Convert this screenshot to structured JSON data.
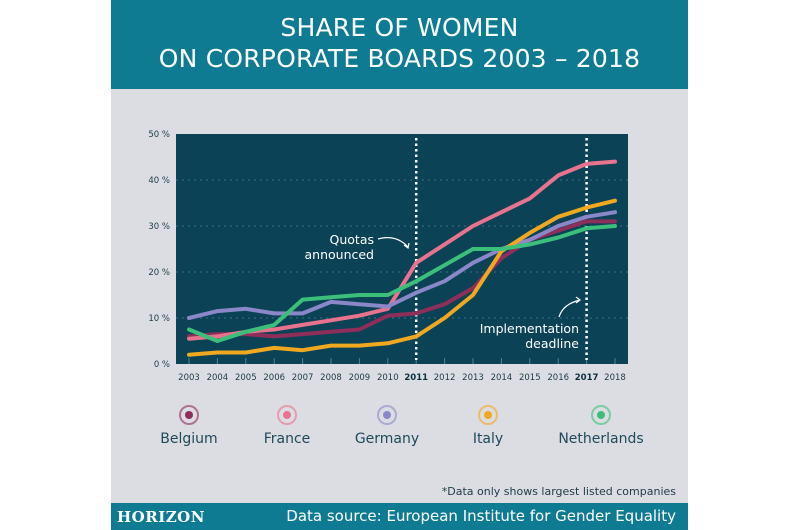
{
  "header": {
    "title_line1": "SHARE OF WOMEN",
    "title_line2": "ON CORPORATE BOARDS 2003 – 2018"
  },
  "colors": {
    "header": "#0f7b92",
    "plot_bg": "#0b4256",
    "background": "#dcdde2"
  },
  "chart_data": {
    "type": "line",
    "title": "SHARE OF WOMEN ON CORPORATE BOARDS 2003 – 2018",
    "x": [
      2003,
      2004,
      2005,
      2006,
      2007,
      2008,
      2009,
      2010,
      2011,
      2012,
      2013,
      2014,
      2015,
      2016,
      2017,
      2018
    ],
    "x_tick_labels": [
      "2003",
      "2004",
      "2005",
      "2006",
      "2007",
      "2008",
      "2009",
      "2010",
      "2011",
      "2012",
      "2013",
      "2014",
      "2015",
      "2016",
      "2017",
      "2018"
    ],
    "bold_ticks": [
      "2011",
      "2017"
    ],
    "y_tick_labels": [
      "0 %",
      "10 %",
      "20 %",
      "30 %",
      "40 %",
      "50 %"
    ],
    "ylim": [
      0,
      50
    ],
    "grid": "horizontal dotted",
    "legend_placement": "bottom",
    "series": [
      {
        "name": "Belgium",
        "color": "#8e2e5a",
        "values": [
          6,
          6.5,
          6.5,
          6,
          6.5,
          7,
          7.5,
          10.5,
          11,
          13,
          16.5,
          23,
          27,
          29,
          31,
          31
        ]
      },
      {
        "name": "France",
        "color": "#e8738e",
        "values": [
          5.5,
          6,
          7,
          7.5,
          8.5,
          9.5,
          10.5,
          12,
          22,
          26,
          30,
          33,
          36,
          41,
          43.5,
          44
        ]
      },
      {
        "name": "Germany",
        "color": "#8a88c8",
        "values": [
          10,
          11.5,
          12,
          11,
          11,
          13.5,
          13,
          12.5,
          15.5,
          18,
          22,
          25,
          27,
          30,
          32,
          33
        ]
      },
      {
        "name": "Italy",
        "color": "#f0a820",
        "values": [
          2,
          2.5,
          2.5,
          3.5,
          3,
          4,
          4,
          4.5,
          6,
          10,
          15,
          24.5,
          28.5,
          32,
          34,
          35.5
        ]
      },
      {
        "name": "Netherlands",
        "color": "#3cbf7a",
        "values": [
          7.5,
          5,
          7,
          8.5,
          14,
          14.5,
          15,
          15,
          18,
          21.5,
          25,
          25,
          26,
          27.5,
          29.5,
          30
        ]
      }
    ],
    "annotations": [
      {
        "x": 2011,
        "line1": "Quotas",
        "line2": "announced"
      },
      {
        "x": 2017,
        "line1": "Implementation",
        "line2": "deadline"
      }
    ]
  },
  "note": "*Data only shows largest listed companies",
  "footer": {
    "logo": "HORIZON",
    "source": "Data source: European Institute for Gender Equality"
  }
}
